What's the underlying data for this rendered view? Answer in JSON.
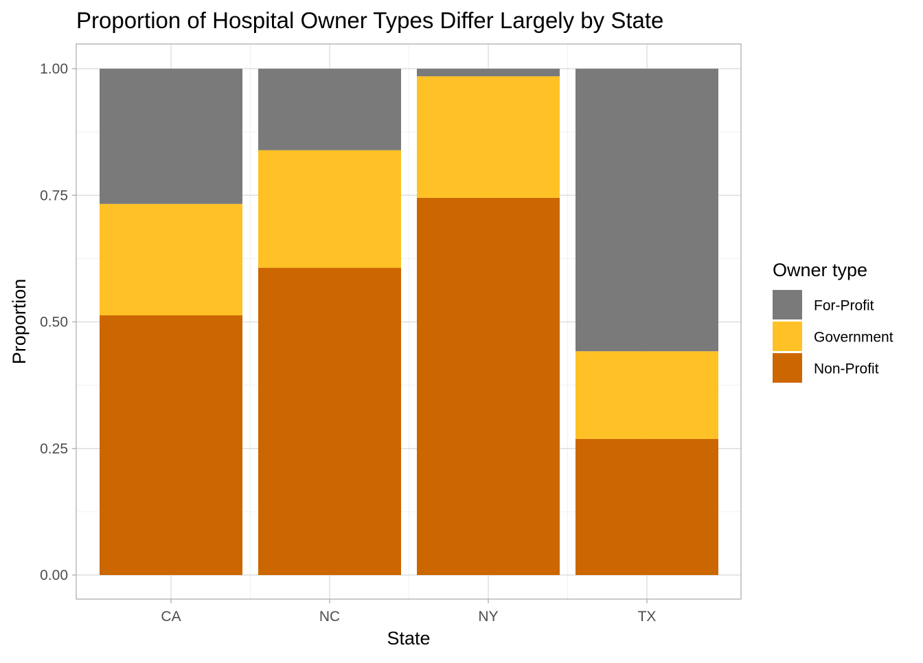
{
  "chart_data": {
    "type": "bar",
    "stacked": true,
    "title": "Proportion of Hospital Owner Types Differ Largely by State",
    "xlabel": "State",
    "ylabel": "Proportion",
    "ylim": [
      0,
      1
    ],
    "y_ticks": [
      "0.00",
      "0.25",
      "0.50",
      "0.75",
      "1.00"
    ],
    "y_tick_values": [
      0,
      0.25,
      0.5,
      0.75,
      1.0
    ],
    "grid": true,
    "legend": {
      "title": "Owner type",
      "position": "right"
    },
    "categories": [
      "CA",
      "NC",
      "NY",
      "TX"
    ],
    "series": [
      {
        "name": "Non-Profit",
        "color": "#CC6600",
        "values": [
          0.513,
          0.607,
          0.745,
          0.269
        ]
      },
      {
        "name": "Government",
        "color": "#FFC125",
        "values": [
          0.22,
          0.232,
          0.24,
          0.173
        ]
      },
      {
        "name": "For-Profit",
        "color": "#7A7A7A",
        "values": [
          0.267,
          0.161,
          0.015,
          0.558
        ]
      }
    ],
    "legend_order": [
      "For-Profit",
      "Government",
      "Non-Profit"
    ]
  }
}
